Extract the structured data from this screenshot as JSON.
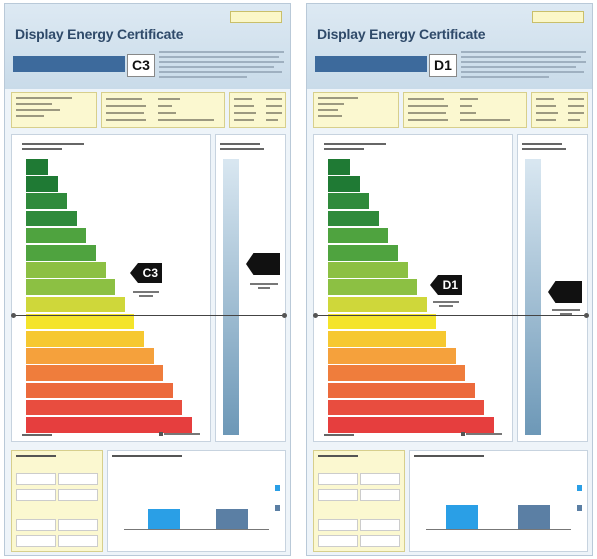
{
  "certificates": [
    {
      "title": "Display Energy Certificate",
      "grade": "C3",
      "accent": "#3d6a9c",
      "history_bar_color": "#2a9fe6",
      "history_bar2_color": "#5b7fa4"
    },
    {
      "title": "Display Energy Certificate",
      "grade": "D1",
      "accent": "#3d6a9c",
      "history_bar_color": "#2a9fe6",
      "history_bar2_color": "#5b7fa4"
    }
  ],
  "rating_colors": [
    "#1f7a34",
    "#1f7a34",
    "#2f8a3b",
    "#2f8a3b",
    "#4fa33f",
    "#4fa33f",
    "#8cc043",
    "#8cc043",
    "#cfd73a",
    "#f4e42a",
    "#f6c830",
    "#f5a13c",
    "#ef7d3c",
    "#ec6a3c",
    "#e84d3f",
    "#e63e3e"
  ]
}
